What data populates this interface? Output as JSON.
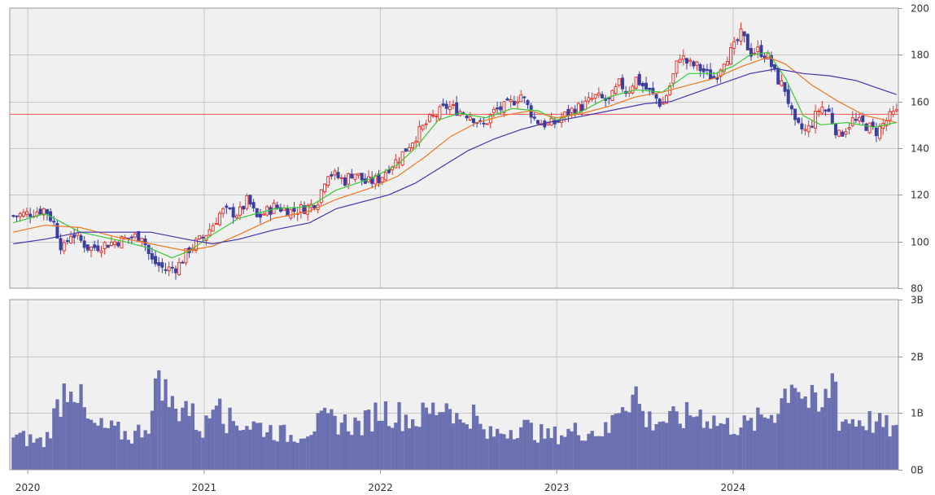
{
  "colors": {
    "panel_bg": "#f0f0f0",
    "grid": "#c8c8c8",
    "border": "#999999",
    "up_candle": "#e8352e",
    "down_candle": "#3a3fa0",
    "ma_short": "#33cc33",
    "ma_mid": "#ee7722",
    "ma_long": "#4433aa",
    "ref_line": "#ff5555",
    "volume": "#6a70b0"
  },
  "chart_data": [
    {
      "type": "candlestick",
      "title": "",
      "x_ticks": [
        "2020",
        "2021",
        "2022",
        "2023",
        "2024"
      ],
      "y_ticks": [
        "200",
        "180",
        "160",
        "140",
        "120",
        "100",
        "80"
      ],
      "ylim": [
        80,
        200
      ],
      "grid": true,
      "axis_position": "right",
      "reference_line": 154.5,
      "close_path": [
        [
          2019.92,
          111
        ],
        [
          2020.0,
          112
        ],
        [
          2020.1,
          114
        ],
        [
          2020.15,
          108
        ],
        [
          2020.2,
          96
        ],
        [
          2020.25,
          104
        ],
        [
          2020.35,
          97
        ],
        [
          2020.5,
          100
        ],
        [
          2020.6,
          102
        ],
        [
          2020.65,
          103
        ],
        [
          2020.7,
          92
        ],
        [
          2020.78,
          88
        ],
        [
          2020.85,
          89
        ],
        [
          2020.92,
          97
        ],
        [
          2021.0,
          102
        ],
        [
          2021.05,
          107
        ],
        [
          2021.1,
          113
        ],
        [
          2021.2,
          112
        ],
        [
          2021.25,
          118
        ],
        [
          2021.3,
          110
        ],
        [
          2021.4,
          115
        ],
        [
          2021.5,
          113
        ],
        [
          2021.6,
          115
        ],
        [
          2021.65,
          118
        ],
        [
          2021.7,
          130
        ],
        [
          2021.8,
          126
        ],
        [
          2021.85,
          130
        ],
        [
          2021.92,
          125
        ],
        [
          2022.0,
          127
        ],
        [
          2022.05,
          132
        ],
        [
          2022.1,
          135
        ],
        [
          2022.2,
          145
        ],
        [
          2022.28,
          152
        ],
        [
          2022.38,
          158
        ],
        [
          2022.45,
          156
        ],
        [
          2022.52,
          154
        ],
        [
          2022.58,
          149
        ],
        [
          2022.65,
          156
        ],
        [
          2022.72,
          158
        ],
        [
          2022.8,
          163
        ],
        [
          2022.88,
          152
        ],
        [
          2022.95,
          150
        ],
        [
          2023.0,
          151
        ],
        [
          2023.08,
          156
        ],
        [
          2023.15,
          158
        ],
        [
          2023.22,
          162
        ],
        [
          2023.3,
          160
        ],
        [
          2023.36,
          168
        ],
        [
          2023.4,
          164
        ],
        [
          2023.45,
          170
        ],
        [
          2023.5,
          166
        ],
        [
          2023.56,
          162
        ],
        [
          2023.6,
          158
        ],
        [
          2023.65,
          168
        ],
        [
          2023.7,
          180
        ],
        [
          2023.75,
          176
        ],
        [
          2023.8,
          175
        ],
        [
          2023.85,
          172
        ],
        [
          2023.9,
          170
        ],
        [
          2023.95,
          178
        ],
        [
          2024.0,
          182
        ],
        [
          2024.05,
          189
        ],
        [
          2024.1,
          181
        ],
        [
          2024.15,
          182
        ],
        [
          2024.2,
          179
        ],
        [
          2024.25,
          170
        ],
        [
          2024.3,
          165
        ],
        [
          2024.35,
          150
        ],
        [
          2024.42,
          147
        ],
        [
          2024.5,
          158
        ],
        [
          2024.55,
          155
        ],
        [
          2024.6,
          145
        ],
        [
          2024.68,
          152
        ],
        [
          2024.75,
          150
        ],
        [
          2024.82,
          147
        ],
        [
          2024.85,
          150
        ],
        [
          2024.9,
          154
        ],
        [
          2024.93,
          155
        ]
      ],
      "moving_averages": [
        {
          "name": "",
          "color_key": "ma_short",
          "points": [
            [
              2019.92,
              108
            ],
            [
              2020.1,
              112
            ],
            [
              2020.3,
              104
            ],
            [
              2020.55,
              100
            ],
            [
              2020.7,
              97
            ],
            [
              2020.82,
              93
            ],
            [
              2020.92,
              96
            ],
            [
              2021.05,
              103
            ],
            [
              2021.2,
              110
            ],
            [
              2021.4,
              114
            ],
            [
              2021.6,
              115
            ],
            [
              2021.75,
              122
            ],
            [
              2021.95,
              127
            ],
            [
              2022.1,
              133
            ],
            [
              2022.2,
              140
            ],
            [
              2022.33,
              152
            ],
            [
              2022.45,
              155
            ],
            [
              2022.6,
              153
            ],
            [
              2022.75,
              157
            ],
            [
              2022.9,
              156
            ],
            [
              2023.0,
              152
            ],
            [
              2023.15,
              156
            ],
            [
              2023.3,
              162
            ],
            [
              2023.45,
              165
            ],
            [
              2023.6,
              164
            ],
            [
              2023.75,
              172
            ],
            [
              2023.9,
              172
            ],
            [
              2024.0,
              175
            ],
            [
              2024.1,
              180
            ],
            [
              2024.2,
              181
            ],
            [
              2024.3,
              170
            ],
            [
              2024.4,
              154
            ],
            [
              2024.5,
              150
            ],
            [
              2024.65,
              151
            ],
            [
              2024.8,
              149
            ],
            [
              2024.93,
              151
            ]
          ]
        },
        {
          "name": "",
          "color_key": "ma_mid",
          "points": [
            [
              2019.92,
              104
            ],
            [
              2020.1,
              107
            ],
            [
              2020.3,
              106
            ],
            [
              2020.5,
              102
            ],
            [
              2020.7,
              99
            ],
            [
              2020.9,
              96
            ],
            [
              2021.05,
              98
            ],
            [
              2021.2,
              103
            ],
            [
              2021.4,
              110
            ],
            [
              2021.6,
              113
            ],
            [
              2021.75,
              118
            ],
            [
              2021.95,
              123
            ],
            [
              2022.1,
              128
            ],
            [
              2022.25,
              136
            ],
            [
              2022.4,
              145
            ],
            [
              2022.55,
              151
            ],
            [
              2022.7,
              154
            ],
            [
              2022.85,
              156
            ],
            [
              2023.0,
              153
            ],
            [
              2023.15,
              155
            ],
            [
              2023.3,
              158
            ],
            [
              2023.45,
              162
            ],
            [
              2023.6,
              164
            ],
            [
              2023.75,
              167
            ],
            [
              2023.9,
              170
            ],
            [
              2024.05,
              175
            ],
            [
              2024.2,
              179
            ],
            [
              2024.3,
              176
            ],
            [
              2024.45,
              167
            ],
            [
              2024.6,
              160
            ],
            [
              2024.75,
              154
            ],
            [
              2024.93,
              151
            ]
          ]
        },
        {
          "name": "",
          "color_key": "ma_long",
          "points": [
            [
              2019.92,
              99
            ],
            [
              2020.1,
              101
            ],
            [
              2020.3,
              104
            ],
            [
              2020.5,
              104
            ],
            [
              2020.7,
              104
            ],
            [
              2020.9,
              101
            ],
            [
              2021.05,
              99
            ],
            [
              2021.2,
              101
            ],
            [
              2021.4,
              105
            ],
            [
              2021.6,
              108
            ],
            [
              2021.75,
              114
            ],
            [
              2021.9,
              117
            ],
            [
              2022.05,
              120
            ],
            [
              2022.2,
              125
            ],
            [
              2022.35,
              132
            ],
            [
              2022.5,
              139
            ],
            [
              2022.65,
              144
            ],
            [
              2022.8,
              148
            ],
            [
              2022.95,
              151
            ],
            [
              2023.1,
              153
            ],
            [
              2023.3,
              156
            ],
            [
              2023.5,
              159
            ],
            [
              2023.65,
              160
            ],
            [
              2023.8,
              164
            ],
            [
              2023.95,
              168
            ],
            [
              2024.1,
              172
            ],
            [
              2024.25,
              174
            ],
            [
              2024.4,
              172
            ],
            [
              2024.55,
              171
            ],
            [
              2024.7,
              169
            ],
            [
              2024.85,
              165
            ],
            [
              2024.93,
              163
            ]
          ]
        }
      ]
    },
    {
      "type": "bar",
      "title": "",
      "x_ticks": [
        "2020",
        "2021",
        "2022",
        "2023",
        "2024"
      ],
      "y_ticks": [
        "3B",
        "2B",
        "1B",
        "0B"
      ],
      "ylim": [
        0,
        3
      ],
      "axis_position": "right",
      "volume_path": [
        [
          2019.92,
          0.6
        ],
        [
          2020.1,
          0.5
        ],
        [
          2020.2,
          1.4
        ],
        [
          2020.25,
          1.7
        ],
        [
          2020.35,
          0.8
        ],
        [
          2020.5,
          0.7
        ],
        [
          2020.6,
          0.6
        ],
        [
          2020.7,
          0.9
        ],
        [
          2020.72,
          1.2
        ],
        [
          2020.75,
          2.0
        ],
        [
          2020.78,
          1.4
        ],
        [
          2020.85,
          1.0
        ],
        [
          2020.88,
          1.3
        ],
        [
          2020.95,
          0.9
        ],
        [
          2021.0,
          0.7
        ],
        [
          2021.05,
          1.1
        ],
        [
          2021.08,
          1.8
        ],
        [
          2021.12,
          0.9
        ],
        [
          2021.3,
          0.8
        ],
        [
          2021.5,
          0.6
        ],
        [
          2021.7,
          0.9
        ],
        [
          2021.9,
          0.8
        ],
        [
          2022.0,
          1.1
        ],
        [
          2022.2,
          0.9
        ],
        [
          2022.4,
          1.25
        ],
        [
          2022.45,
          0.8
        ],
        [
          2022.52,
          1.05
        ],
        [
          2022.6,
          0.6
        ],
        [
          2022.8,
          0.8
        ],
        [
          2022.95,
          0.6
        ],
        [
          2023.1,
          0.7
        ],
        [
          2023.3,
          0.7
        ],
        [
          2023.35,
          1.2
        ],
        [
          2023.45,
          1.4
        ],
        [
          2023.5,
          0.9
        ],
        [
          2023.7,
          0.9
        ],
        [
          2023.8,
          1.05
        ],
        [
          2023.95,
          0.8
        ],
        [
          2024.1,
          0.8
        ],
        [
          2024.25,
          1.1
        ],
        [
          2024.35,
          1.75
        ],
        [
          2024.4,
          1.3
        ],
        [
          2024.45,
          1.2
        ],
        [
          2024.5,
          1.0
        ],
        [
          2024.58,
          1.8
        ],
        [
          2024.6,
          0.9
        ],
        [
          2024.75,
          0.9
        ],
        [
          2024.85,
          0.8
        ],
        [
          2024.93,
          0.7
        ]
      ]
    }
  ]
}
